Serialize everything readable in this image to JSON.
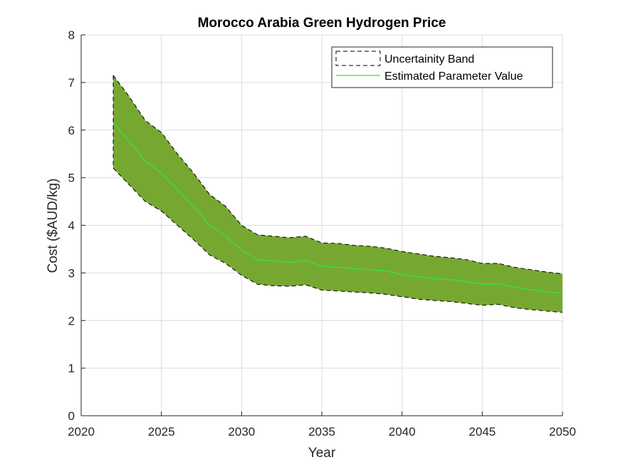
{
  "chart_data": {
    "type": "area",
    "title": "Morocco Arabia Green Hydrogen Price",
    "xlabel": "Year",
    "ylabel": "Cost ($AUD/kg)",
    "xlim": [
      2020,
      2050
    ],
    "ylim": [
      0,
      8
    ],
    "xticks": [
      2020,
      2025,
      2030,
      2035,
      2040,
      2045,
      2050
    ],
    "yticks": [
      0,
      1,
      2,
      3,
      4,
      5,
      6,
      7,
      8
    ],
    "grid": true,
    "legend_position": "top-right",
    "x": [
      2022,
      2023,
      2024,
      2025,
      2026,
      2027,
      2028,
      2029,
      2030,
      2031,
      2032,
      2033,
      2034,
      2035,
      2036,
      2037,
      2038,
      2039,
      2040,
      2041,
      2042,
      2043,
      2044,
      2045,
      2046,
      2047,
      2048,
      2049,
      2050
    ],
    "series": [
      {
        "name": "Uncertainity Band",
        "role": "band",
        "upper": [
          7.15,
          6.7,
          6.2,
          5.95,
          5.5,
          5.1,
          4.65,
          4.4,
          4.0,
          3.8,
          3.77,
          3.74,
          3.77,
          3.63,
          3.62,
          3.58,
          3.56,
          3.52,
          3.45,
          3.4,
          3.35,
          3.32,
          3.28,
          3.2,
          3.2,
          3.12,
          3.07,
          3.02,
          2.98
        ],
        "lower": [
          5.2,
          4.85,
          4.5,
          4.3,
          4.0,
          3.7,
          3.38,
          3.2,
          2.95,
          2.76,
          2.73,
          2.72,
          2.75,
          2.64,
          2.62,
          2.6,
          2.58,
          2.55,
          2.5,
          2.45,
          2.42,
          2.4,
          2.36,
          2.32,
          2.34,
          2.27,
          2.23,
          2.2,
          2.17
        ],
        "fill_color": "#76a831",
        "edge_color": "#000000"
      },
      {
        "name": "Estimated Parameter Value",
        "role": "line",
        "values": [
          6.15,
          5.75,
          5.35,
          5.1,
          4.75,
          4.4,
          4.0,
          3.78,
          3.48,
          3.28,
          3.25,
          3.22,
          3.26,
          3.14,
          3.12,
          3.09,
          3.07,
          3.04,
          2.97,
          2.92,
          2.88,
          2.86,
          2.82,
          2.76,
          2.77,
          2.7,
          2.65,
          2.61,
          2.57
        ],
        "color": "#33e633"
      }
    ]
  }
}
